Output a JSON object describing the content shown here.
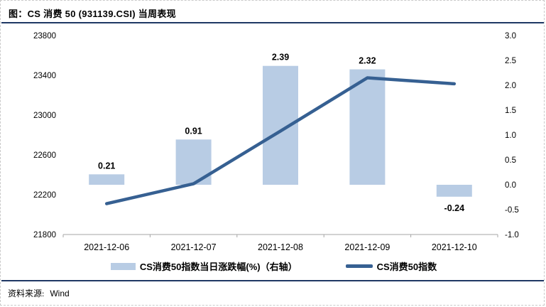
{
  "header": {
    "title": "图：CS 消费 50 (931139.CSI) 当周表现"
  },
  "chart_data": {
    "type": "bar+line",
    "categories": [
      "2021-12-06",
      "2021-12-07",
      "2021-12-08",
      "2021-12-09",
      "2021-12-10"
    ],
    "series": [
      {
        "name": "CS消费50指数当日涨跌幅(%)（右轴）",
        "type": "bar",
        "axis": "right",
        "values": [
          0.21,
          0.91,
          2.39,
          2.32,
          -0.24
        ],
        "labels": [
          "0.21",
          "0.91",
          "2.39",
          "2.32",
          "-0.24"
        ],
        "color": "#B8CCE4",
        "label_color": "#FF0000"
      },
      {
        "name": "CS消费50指数",
        "type": "line",
        "axis": "left",
        "values": [
          22110,
          22310,
          22840,
          23375,
          23315
        ],
        "color": "#366092"
      }
    ],
    "left_axis": {
      "min": 21800,
      "max": 23800,
      "ticks": [
        "23800",
        "23400",
        "23000",
        "22600",
        "22200",
        "21800"
      ]
    },
    "right_axis": {
      "min": -1.0,
      "max": 3.0,
      "ticks": [
        "3.0",
        "2.5",
        "2.0",
        "1.5",
        "1.0",
        "0.5",
        "0.0",
        "-0.5",
        "-1.0"
      ]
    },
    "grid": false,
    "legend_position": "bottom"
  },
  "legend": {
    "items": [
      {
        "label": "CS消费50指数当日涨跌幅(%)（右轴）",
        "swatch": "bar"
      },
      {
        "label": "CS消费50指数",
        "swatch": "line"
      }
    ]
  },
  "footer": {
    "source_label": "资料来源:",
    "source_value": "Wind"
  },
  "colors": {
    "bar": "#B8CCE4",
    "line": "#366092",
    "data_label": "#FF0000",
    "axis_line": "#A6A6A6",
    "separator": "#1F3864",
    "border": "#C9C9C9"
  }
}
